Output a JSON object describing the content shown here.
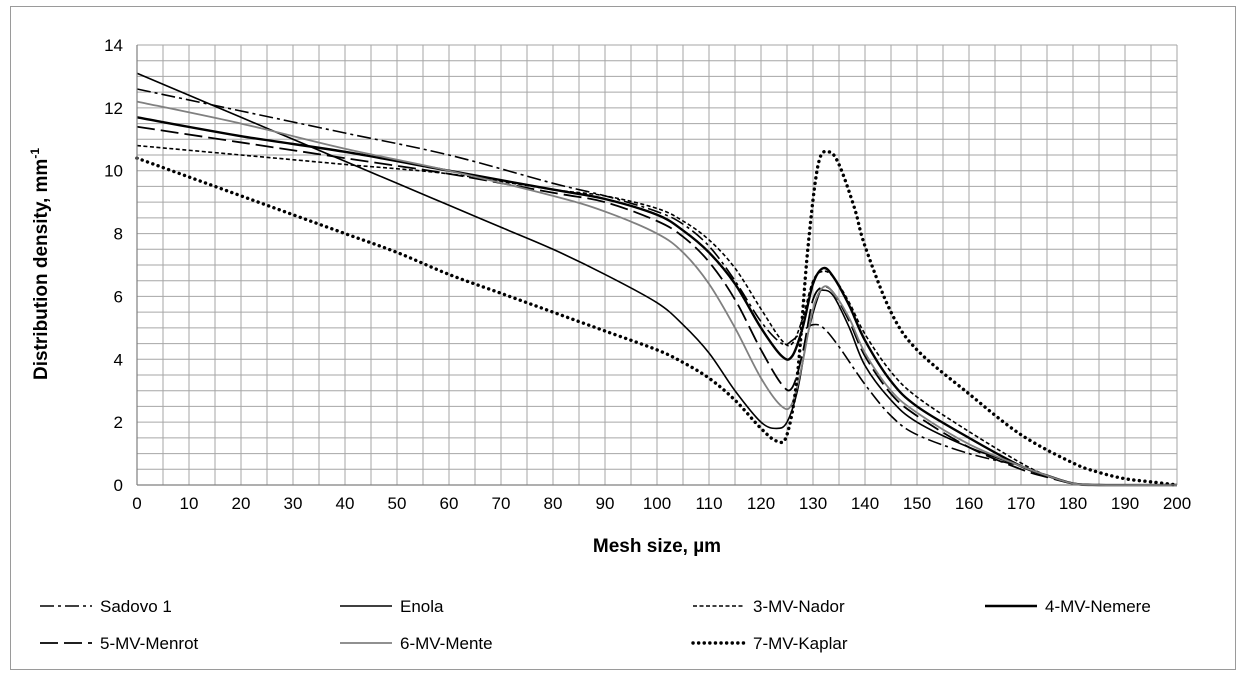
{
  "chart_data": {
    "type": "line",
    "title": "",
    "xlabel": "Mesh size, µm",
    "ylabel": "Distribution density,  mm",
    "ylabel_sup": "-1",
    "xlim": [
      0,
      200
    ],
    "ylim": [
      0,
      14
    ],
    "x_ticks": [
      0,
      10,
      20,
      30,
      40,
      50,
      60,
      70,
      80,
      90,
      100,
      110,
      120,
      130,
      140,
      150,
      160,
      170,
      180,
      190,
      200
    ],
    "y_ticks": [
      0,
      2,
      4,
      6,
      8,
      10,
      12,
      14
    ],
    "grid": {
      "x_minor_step": 5,
      "y_minor_step": 0.5
    },
    "legend_position": "bottom",
    "series": [
      {
        "name": "Sadovo 1",
        "style": "dashdot",
        "color": "#000000",
        "points": [
          [
            0,
            12.6
          ],
          [
            20,
            11.9
          ],
          [
            40,
            11.2
          ],
          [
            60,
            10.5
          ],
          [
            80,
            9.6
          ],
          [
            90,
            9.2
          ],
          [
            100,
            8.7
          ],
          [
            105,
            8.3
          ],
          [
            110,
            7.6
          ],
          [
            115,
            6.5
          ],
          [
            120,
            5.2
          ],
          [
            124,
            4.5
          ],
          [
            126,
            4.6
          ],
          [
            128,
            4.9
          ],
          [
            130,
            5.1
          ],
          [
            132,
            5.0
          ],
          [
            135,
            4.4
          ],
          [
            140,
            3.2
          ],
          [
            145,
            2.2
          ],
          [
            150,
            1.6
          ],
          [
            160,
            1.0
          ],
          [
            170,
            0.6
          ],
          [
            175,
            0.3
          ],
          [
            180,
            0.05
          ],
          [
            185,
            0
          ],
          [
            200,
            0
          ]
        ]
      },
      {
        "name": "Enola",
        "style": "solid",
        "color": "#000000",
        "points": [
          [
            0,
            13.1
          ],
          [
            10,
            12.4
          ],
          [
            20,
            11.7
          ],
          [
            30,
            11.0
          ],
          [
            40,
            10.3
          ],
          [
            50,
            9.6
          ],
          [
            60,
            8.9
          ],
          [
            70,
            8.2
          ],
          [
            80,
            7.5
          ],
          [
            90,
            6.7
          ],
          [
            100,
            5.8
          ],
          [
            105,
            5.1
          ],
          [
            110,
            4.2
          ],
          [
            115,
            3.0
          ],
          [
            120,
            2.0
          ],
          [
            123,
            1.8
          ],
          [
            125,
            2.0
          ],
          [
            127,
            3.0
          ],
          [
            129,
            4.8
          ],
          [
            131,
            6.0
          ],
          [
            132,
            6.2
          ],
          [
            134,
            6.0
          ],
          [
            137,
            5.0
          ],
          [
            140,
            3.8
          ],
          [
            145,
            2.7
          ],
          [
            150,
            2.0
          ],
          [
            160,
            1.2
          ],
          [
            170,
            0.6
          ],
          [
            175,
            0.3
          ],
          [
            180,
            0.05
          ],
          [
            185,
            0
          ],
          [
            200,
            0
          ]
        ]
      },
      {
        "name": "3-MV-Nador",
        "style": "dashed-short",
        "color": "#000000",
        "points": [
          [
            0,
            10.8
          ],
          [
            20,
            10.5
          ],
          [
            40,
            10.2
          ],
          [
            60,
            9.9
          ],
          [
            80,
            9.4
          ],
          [
            90,
            9.2
          ],
          [
            100,
            8.8
          ],
          [
            105,
            8.4
          ],
          [
            110,
            7.8
          ],
          [
            115,
            6.9
          ],
          [
            120,
            5.6
          ],
          [
            124,
            4.6
          ],
          [
            126,
            4.5
          ],
          [
            128,
            5.3
          ],
          [
            130,
            6.5
          ],
          [
            132,
            6.8
          ],
          [
            134,
            6.6
          ],
          [
            137,
            5.8
          ],
          [
            140,
            4.8
          ],
          [
            145,
            3.6
          ],
          [
            150,
            2.8
          ],
          [
            160,
            1.7
          ],
          [
            170,
            0.7
          ],
          [
            175,
            0.3
          ],
          [
            180,
            0.05
          ],
          [
            185,
            0
          ],
          [
            200,
            0
          ]
        ]
      },
      {
        "name": "4-MV-Nemere",
        "style": "solid-thick",
        "color": "#000000",
        "points": [
          [
            0,
            11.7
          ],
          [
            20,
            11.1
          ],
          [
            40,
            10.6
          ],
          [
            60,
            10.0
          ],
          [
            80,
            9.4
          ],
          [
            90,
            9.1
          ],
          [
            100,
            8.6
          ],
          [
            105,
            8.1
          ],
          [
            110,
            7.4
          ],
          [
            115,
            6.4
          ],
          [
            120,
            5.0
          ],
          [
            124,
            4.1
          ],
          [
            126,
            4.1
          ],
          [
            128,
            5.0
          ],
          [
            130,
            6.4
          ],
          [
            132,
            6.9
          ],
          [
            134,
            6.6
          ],
          [
            137,
            5.7
          ],
          [
            140,
            4.6
          ],
          [
            145,
            3.3
          ],
          [
            150,
            2.5
          ],
          [
            160,
            1.5
          ],
          [
            170,
            0.6
          ],
          [
            175,
            0.3
          ],
          [
            180,
            0.05
          ],
          [
            185,
            0
          ],
          [
            200,
            0
          ]
        ]
      },
      {
        "name": "5-MV-Menrot",
        "style": "longdash",
        "color": "#000000",
        "points": [
          [
            0,
            11.4
          ],
          [
            20,
            10.9
          ],
          [
            40,
            10.4
          ],
          [
            60,
            9.9
          ],
          [
            80,
            9.3
          ],
          [
            90,
            9.0
          ],
          [
            100,
            8.4
          ],
          [
            105,
            7.9
          ],
          [
            110,
            7.1
          ],
          [
            115,
            5.9
          ],
          [
            120,
            4.3
          ],
          [
            124,
            3.2
          ],
          [
            126,
            3.1
          ],
          [
            128,
            4.2
          ],
          [
            130,
            5.9
          ],
          [
            132,
            6.3
          ],
          [
            134,
            6.1
          ],
          [
            137,
            5.2
          ],
          [
            140,
            4.1
          ],
          [
            145,
            2.9
          ],
          [
            150,
            2.2
          ],
          [
            160,
            1.2
          ],
          [
            170,
            0.5
          ],
          [
            175,
            0.25
          ],
          [
            180,
            0.05
          ],
          [
            185,
            0
          ],
          [
            200,
            0
          ]
        ]
      },
      {
        "name": "6-MV-Mente",
        "style": "solid-gray",
        "color": "#808080",
        "points": [
          [
            0,
            12.2
          ],
          [
            20,
            11.5
          ],
          [
            40,
            10.7
          ],
          [
            60,
            10.0
          ],
          [
            80,
            9.2
          ],
          [
            90,
            8.7
          ],
          [
            100,
            8.0
          ],
          [
            105,
            7.4
          ],
          [
            110,
            6.4
          ],
          [
            115,
            5.0
          ],
          [
            120,
            3.4
          ],
          [
            124,
            2.5
          ],
          [
            126,
            2.6
          ],
          [
            128,
            3.9
          ],
          [
            130,
            5.6
          ],
          [
            132,
            6.3
          ],
          [
            134,
            6.1
          ],
          [
            137,
            5.3
          ],
          [
            140,
            4.2
          ],
          [
            145,
            3.0
          ],
          [
            150,
            2.3
          ],
          [
            160,
            1.3
          ],
          [
            170,
            0.6
          ],
          [
            175,
            0.3
          ],
          [
            180,
            0.05
          ],
          [
            185,
            0
          ],
          [
            200,
            0
          ]
        ]
      },
      {
        "name": "7-MV-Kaplar",
        "style": "dotted",
        "color": "#000000",
        "points": [
          [
            0,
            10.4
          ],
          [
            10,
            9.8
          ],
          [
            20,
            9.2
          ],
          [
            30,
            8.6
          ],
          [
            40,
            8.0
          ],
          [
            50,
            7.4
          ],
          [
            60,
            6.7
          ],
          [
            70,
            6.1
          ],
          [
            80,
            5.5
          ],
          [
            90,
            4.9
          ],
          [
            100,
            4.3
          ],
          [
            105,
            3.9
          ],
          [
            110,
            3.4
          ],
          [
            115,
            2.7
          ],
          [
            120,
            1.8
          ],
          [
            123,
            1.4
          ],
          [
            125,
            1.6
          ],
          [
            127,
            3.5
          ],
          [
            129,
            7.5
          ],
          [
            131,
            10.2
          ],
          [
            133,
            10.6
          ],
          [
            135,
            10.2
          ],
          [
            138,
            8.8
          ],
          [
            140,
            7.6
          ],
          [
            145,
            5.5
          ],
          [
            150,
            4.3
          ],
          [
            160,
            2.9
          ],
          [
            170,
            1.6
          ],
          [
            180,
            0.7
          ],
          [
            185,
            0.4
          ],
          [
            190,
            0.2
          ],
          [
            195,
            0.1
          ],
          [
            200,
            0
          ]
        ]
      }
    ]
  }
}
